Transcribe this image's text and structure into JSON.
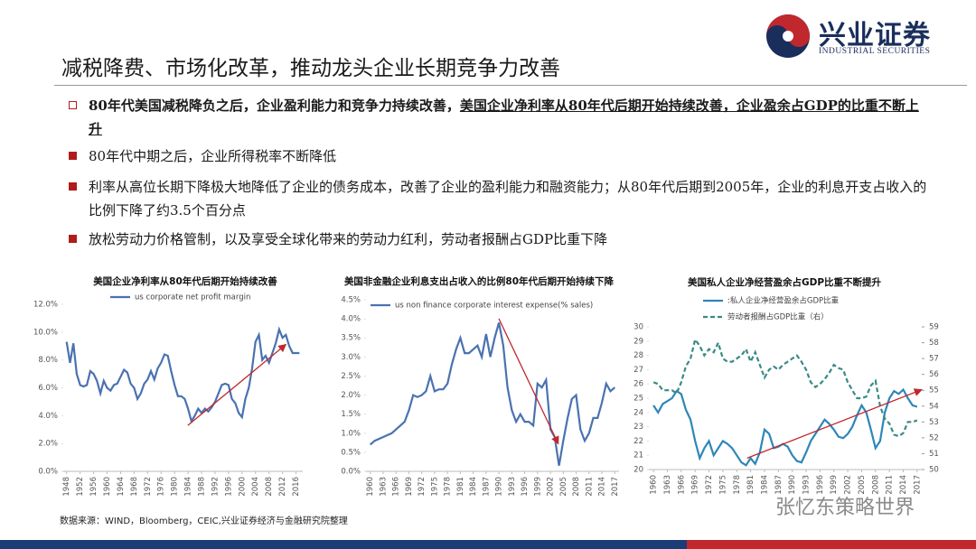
{
  "header": {
    "title": "减税降费、市场化改革，推动龙头企业长期竞争力改善",
    "logo_name": "兴业证券",
    "logo_subtitle": "INDUSTRIAL SECURITIES"
  },
  "bullets": [
    {
      "text": "80年代美国减税降负之后，企业盈利能力和竞争力持续改善，",
      "underlined": "美国企业净利率从80年代后期开始持续改善，企业盈余占GDP的比重不断上升"
    },
    {
      "text": "80年代中期之后，企业所得税率不断降低"
    },
    {
      "text": "利率从高位长期下降极大地降低了企业的债务成本，改善了企业的盈利能力和融资能力；从80年代后期到2005年，企业的利息开支占收入的比例下降了约3.5个百分点"
    },
    {
      "text": "放松劳动力价格管制，以及享受全球化带来的劳动力红利，劳动者报酬占GDP比重下降"
    }
  ],
  "chart_data": [
    {
      "type": "line",
      "title": "美国企业净利率从80年代后期开始持续改善",
      "x": [
        1948,
        1949,
        1950,
        1951,
        1952,
        1953,
        1954,
        1955,
        1956,
        1957,
        1958,
        1959,
        1960,
        1961,
        1962,
        1963,
        1964,
        1965,
        1966,
        1967,
        1968,
        1969,
        1970,
        1971,
        1972,
        1973,
        1974,
        1975,
        1976,
        1977,
        1978,
        1979,
        1980,
        1981,
        1982,
        1983,
        1984,
        1985,
        1986,
        1987,
        1988,
        1989,
        1990,
        1991,
        1992,
        1993,
        1994,
        1995,
        1996,
        1997,
        1998,
        1999,
        2000,
        2001,
        2002,
        2003,
        2004,
        2005,
        2006,
        2007,
        2008,
        2009,
        2010,
        2011,
        2012,
        2013,
        2014,
        2015,
        2016,
        2017
      ],
      "series": [
        {
          "name": "us corporate net profit margin",
          "color": "#4a72b0",
          "line_style": "solid",
          "values": [
            9.3,
            7.8,
            9.2,
            7.0,
            6.2,
            6.1,
            6.2,
            7.2,
            7.0,
            6.5,
            5.6,
            6.5,
            6.0,
            5.8,
            6.2,
            6.3,
            6.8,
            7.3,
            7.1,
            6.3,
            6.0,
            5.2,
            5.6,
            6.3,
            6.6,
            7.2,
            6.6,
            7.4,
            7.8,
            8.4,
            8.3,
            7.2,
            6.2,
            5.4,
            5.4,
            5.2,
            4.5,
            3.6,
            4.0,
            4.5,
            4.2,
            4.5,
            4.3,
            4.6,
            5.0,
            5.6,
            6.2,
            6.3,
            6.2,
            5.2,
            4.9,
            4.2,
            3.9,
            5.2,
            6.0,
            7.4,
            9.3,
            9.8,
            8.0,
            8.3,
            7.8,
            8.5,
            9.2,
            10.2,
            9.6,
            9.8,
            9.0,
            8.5,
            8.5,
            8.5
          ]
        }
      ],
      "xlim": [
        1947,
        2018
      ],
      "xticks": [
        1948,
        1952,
        1956,
        1960,
        1964,
        1968,
        1972,
        1976,
        1980,
        1984,
        1988,
        1992,
        1996,
        2000,
        2004,
        2008,
        2012,
        2016
      ],
      "ylim": [
        0,
        12
      ],
      "yticks": [
        {
          "value": 0,
          "label": "0.0%"
        },
        {
          "value": 2,
          "label": "2.0%"
        },
        {
          "value": 4,
          "label": "4.0%"
        },
        {
          "value": 6,
          "label": "6.0%"
        },
        {
          "value": 8,
          "label": "8.0%"
        },
        {
          "value": 10,
          "label": "10.0%"
        },
        {
          "value": 12,
          "label": "12.0%"
        }
      ],
      "grid": false
    },
    {
      "type": "line",
      "title": "美国非金融企业利息支出占收入的比例80年代后期开始持续下降",
      "x": [
        1960,
        1961,
        1962,
        1963,
        1964,
        1965,
        1966,
        1967,
        1968,
        1969,
        1970,
        1971,
        1972,
        1973,
        1974,
        1975,
        1976,
        1977,
        1978,
        1979,
        1980,
        1981,
        1982,
        1983,
        1984,
        1985,
        1986,
        1987,
        1988,
        1989,
        1990,
        1991,
        1992,
        1993,
        1994,
        1995,
        1996,
        1997,
        1998,
        1999,
        2000,
        2001,
        2002,
        2003,
        2004,
        2005,
        2006,
        2007,
        2008,
        2009,
        2010,
        2011,
        2012,
        2013,
        2014,
        2015,
        2016,
        2017
      ],
      "series": [
        {
          "name": "us non finance corporate interest expense(% sales)",
          "color": "#4a72b0",
          "line_style": "solid",
          "values": [
            0.7,
            0.8,
            0.85,
            0.9,
            0.95,
            1.0,
            1.1,
            1.2,
            1.3,
            1.6,
            2.0,
            1.95,
            2.0,
            2.1,
            2.5,
            2.1,
            2.15,
            2.15,
            2.3,
            2.8,
            3.2,
            3.5,
            3.1,
            3.1,
            3.2,
            3.3,
            3.0,
            3.6,
            3.0,
            3.5,
            3.9,
            3.3,
            2.2,
            1.6,
            1.3,
            1.5,
            1.3,
            1.3,
            1.2,
            2.3,
            2.2,
            2.4,
            1.1,
            0.9,
            0.15,
            0.8,
            1.4,
            1.9,
            2.0,
            1.1,
            0.8,
            1.0,
            1.4,
            1.4,
            1.8,
            2.3,
            2.1,
            2.2
          ]
        }
      ],
      "xlim": [
        1959,
        2018
      ],
      "xticks": [
        1960,
        1963,
        1966,
        1969,
        1972,
        1975,
        1978,
        1981,
        1984,
        1987,
        1990,
        1993,
        1996,
        1999,
        2002,
        2005,
        2008,
        2011,
        2014,
        2017
      ],
      "ylim": [
        0,
        4.5
      ],
      "yticks": [
        {
          "value": 0,
          "label": "0.0%"
        },
        {
          "value": 0.5,
          "label": "0.5%"
        },
        {
          "value": 1,
          "label": "1.0%"
        },
        {
          "value": 1.5,
          "label": "1.5%"
        },
        {
          "value": 2,
          "label": "2.0%"
        },
        {
          "value": 2.5,
          "label": "2.5%"
        },
        {
          "value": 3,
          "label": "3.0%"
        },
        {
          "value": 3.5,
          "label": "3.5%"
        },
        {
          "value": 4,
          "label": "4.0%"
        },
        {
          "value": 4.5,
          "label": "4.5%"
        }
      ],
      "grid": false
    },
    {
      "type": "line",
      "title": "美国私人企业净经营盈余占GDP比重不断提升",
      "x": [
        1960,
        1961,
        1962,
        1963,
        1964,
        1965,
        1966,
        1967,
        1968,
        1969,
        1970,
        1971,
        1972,
        1973,
        1974,
        1975,
        1976,
        1977,
        1978,
        1979,
        1980,
        1981,
        1982,
        1983,
        1984,
        1985,
        1986,
        1987,
        1988,
        1989,
        1990,
        1991,
        1992,
        1993,
        1994,
        1995,
        1996,
        1997,
        1998,
        1999,
        2000,
        2001,
        2002,
        2003,
        2004,
        2005,
        2006,
        2007,
        2008,
        2009,
        2010,
        2011,
        2012,
        2013,
        2014,
        2015,
        2016,
        2017
      ],
      "series": [
        {
          "name": ":私人企业净经营盈余占GDP比重",
          "color": "#2e86b8",
          "line_style": "solid",
          "values": [
            24.5,
            24.0,
            24.6,
            24.8,
            25.0,
            25.5,
            25.3,
            24.2,
            23.5,
            22.0,
            20.8,
            21.5,
            22.0,
            21.0,
            21.5,
            22.0,
            21.8,
            21.5,
            21.0,
            20.5,
            20.3,
            20.8,
            20.4,
            21.2,
            22.8,
            22.5,
            21.5,
            21.6,
            21.8,
            21.6,
            21.0,
            20.6,
            20.5,
            21.2,
            22.0,
            22.5,
            23.0,
            23.5,
            23.2,
            22.8,
            22.3,
            22.2,
            22.5,
            23.0,
            23.8,
            24.5,
            24.0,
            22.8,
            21.5,
            22.0,
            24.0,
            25.0,
            25.5,
            25.3,
            25.6,
            25.0,
            24.5,
            24.4
          ]
        },
        {
          "name": "劳动者报酬占GDP比重（右）",
          "color": "#3a8a86",
          "line_style": "dashed",
          "axis": "y2",
          "values": [
            55.5,
            55.4,
            55.0,
            55.0,
            55.0,
            54.8,
            55.5,
            56.5,
            57.0,
            58.2,
            57.8,
            57.2,
            57.6,
            57.4,
            58.0,
            57.0,
            56.8,
            56.8,
            57.0,
            57.2,
            57.6,
            56.8,
            57.4,
            56.6,
            55.8,
            56.3,
            56.5,
            56.3,
            56.6,
            56.8,
            57.0,
            57.2,
            56.8,
            56.3,
            55.5,
            55.2,
            55.4,
            55.7,
            56.1,
            56.6,
            56.4,
            56.3,
            55.5,
            55.0,
            54.5,
            54.5,
            54.6,
            55.3,
            55.6,
            54.0,
            53.2,
            52.9,
            52.2,
            52.1,
            52.3,
            53.0,
            53.0,
            53.1
          ]
        }
      ],
      "xlim": [
        1959,
        2018
      ],
      "xticks": [
        1960,
        1963,
        1966,
        1969,
        1972,
        1975,
        1978,
        1981,
        1984,
        1987,
        1990,
        1993,
        1996,
        1999,
        2002,
        2005,
        2008,
        2011,
        2014,
        2017
      ],
      "ylim": [
        20,
        30
      ],
      "yticks": [
        20,
        21,
        22,
        23,
        24,
        25,
        26,
        27,
        28,
        29,
        30
      ],
      "y2lim": [
        50,
        59
      ],
      "y2ticks": [
        50,
        51,
        52,
        53,
        54,
        55,
        56,
        57,
        58,
        59
      ],
      "grid": false
    }
  ],
  "source": "数据来源：WIND，Bloomberg，CEIC,兴业证券经济与金融研究院整理",
  "watermark": "张忆东策略世界"
}
